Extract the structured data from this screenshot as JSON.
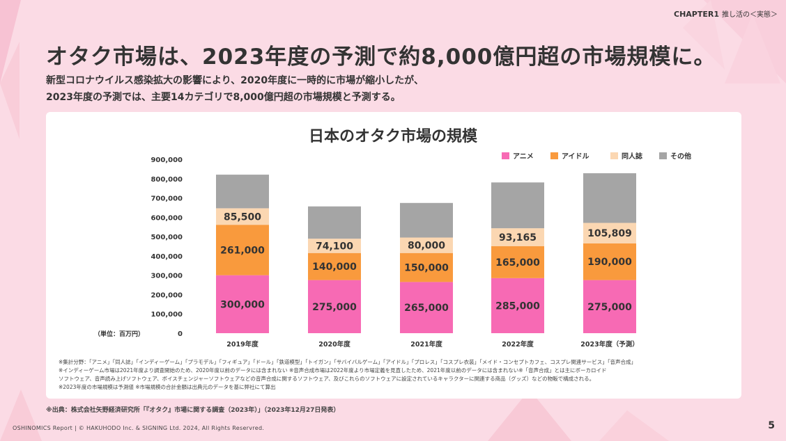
{
  "header": {
    "chapter": "CHAPTER1",
    "chapter_sub": "推し活の＜実態＞"
  },
  "headline": "オタク市場は、2023年度の予測で約8,000億円超の市場規模に。",
  "lead": {
    "line1": "新型コロナウイルス感染拡大の影響により、2020年度に一時的に市場が縮小したが、",
    "line2": "2023年度の予測では、主要14カテゴリで8,000億円超の市場規模と予測する。"
  },
  "colors": {
    "anime": "#f76ab4",
    "idol": "#f99a3d",
    "doujinshi": "#fbd7b2",
    "other": "#a5a5a5"
  },
  "chart_data": {
    "type": "bar",
    "stacked": true,
    "title": "日本のオタク市場の規模",
    "unit_label": "（単位：百万円）",
    "categories": [
      "2019年度",
      "2020年度",
      "2021年度",
      "2022年度",
      "2023年度（予測）"
    ],
    "series": [
      {
        "name": "アニメ",
        "values": [
          300000,
          275000,
          265000,
          285000,
          275000
        ],
        "labels": [
          "300,000",
          "275,000",
          "265,000",
          "285,000",
          "275,000"
        ]
      },
      {
        "name": "アイドル",
        "values": [
          261000,
          140000,
          150000,
          165000,
          190000
        ],
        "labels": [
          "261,000",
          "140,000",
          "150,000",
          "165,000",
          "190,000"
        ]
      },
      {
        "name": "同人誌",
        "values": [
          85500,
          74100,
          80000,
          93165,
          105809
        ],
        "labels": [
          "85,500",
          "74,100",
          "80,000",
          "93,165",
          "105,809"
        ]
      },
      {
        "name": "その他",
        "values": [
          174000,
          167000,
          179000,
          237000,
          257000
        ],
        "labels": []
      }
    ],
    "y_ticks": [
      "0",
      "100,000",
      "200,000",
      "300,000",
      "400,000",
      "500,000",
      "600,000",
      "700,000",
      "800,000",
      "900,000"
    ],
    "ylim": [
      0,
      900000
    ],
    "legend_position": "top-right"
  },
  "notes": [
    "※集計分野：「アニメ」「同人誌」「インディーゲーム」「プラモデル」「フィギュア」「ドール」「鉄道模型」「トイガン」「サバイバルゲーム」「アイドル」「プロレス」「コスプレ衣装」「メイド・コンセプトカフェ、コスプレ関連サービス」「音声合成」",
    "※インディーゲーム市場は2021年度より調査開始のため、2020年度以前のデータには含まれない ※音声合成市場は2022年度より市場定義を見直したため、2021年度以前のデータには含まれない※「音声合成」とは主にボーカロイド",
    "ソフトウェア、音声読み上げソフトウェア、ボイスチェンジャーソフトウェアなどの音声合成に関するソフトウェア、及びこれらのソフトウェアに設定されているキャラクターに関連する商品（グッズ）などの物販で構成される。",
    "※2023年度の市場規模は予測値 ※市場規模の合計金額は出典元のデータを基に弊社にて算出"
  ],
  "source": "※出典：株式会社矢野経済研究所「『オタク』市場に関する調査（2023年）」（2023年12月27日発表）",
  "footer": "OSHINOMICS Report | © HAKUHODO Inc. & SIGNING Ltd. 2024, All Rights Reservred.",
  "page_number": "5"
}
